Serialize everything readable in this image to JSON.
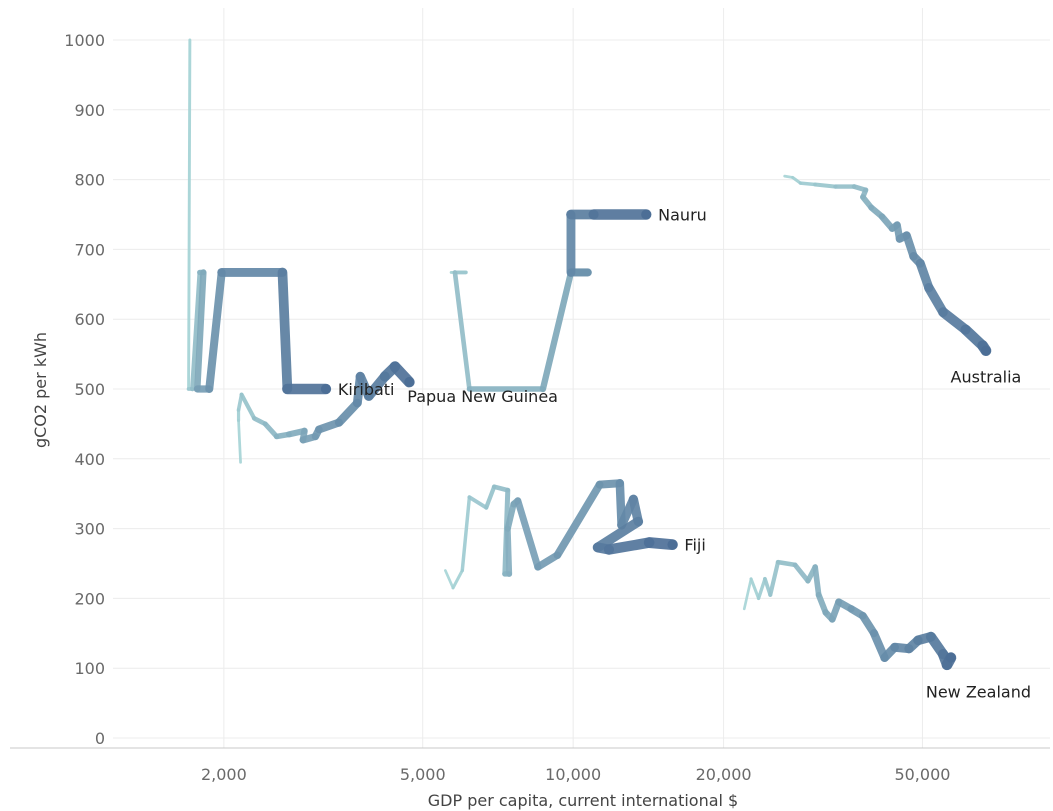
{
  "chart_data": {
    "type": "line",
    "title": "",
    "xlabel": "GDP per capita, current international $",
    "ylabel": "gCO2 per kWh",
    "x_scale": "log",
    "xlim": [
      1200,
      90000
    ],
    "ylim": [
      0,
      1000
    ],
    "x_ticks": [
      {
        "value": 2000,
        "label": "2,000"
      },
      {
        "value": 5000,
        "label": "5,000"
      },
      {
        "value": 10000,
        "label": "10,000"
      },
      {
        "value": 20000,
        "label": "20,000"
      },
      {
        "value": 50000,
        "label": "50,000"
      }
    ],
    "y_ticks": [
      {
        "value": 0,
        "label": "0"
      },
      {
        "value": 100,
        "label": "100"
      },
      {
        "value": 200,
        "label": "200"
      },
      {
        "value": 300,
        "label": "300"
      },
      {
        "value": 400,
        "label": "400"
      },
      {
        "value": 500,
        "label": "500"
      },
      {
        "value": 600,
        "label": "600"
      },
      {
        "value": 700,
        "label": "700"
      },
      {
        "value": 800,
        "label": "800"
      },
      {
        "value": 900,
        "label": "900"
      },
      {
        "value": 1000,
        "label": "1000"
      }
    ],
    "grid": true,
    "legend": "none",
    "color_start": "#a9d7d8",
    "color_end": "#4c6e96",
    "series": [
      {
        "name": "Kiribati",
        "points": [
          [
            1710,
            1000
          ],
          [
            1700,
            500
          ],
          [
            1730,
            500
          ],
          [
            1790,
            667
          ],
          [
            1820,
            667
          ],
          [
            1770,
            500
          ],
          [
            1870,
            500
          ],
          [
            1980,
            667
          ],
          [
            2620,
            667
          ],
          [
            2680,
            500
          ],
          [
            3200,
            500
          ]
        ]
      },
      {
        "name": "Papua New Guinea",
        "points": [
          [
            2160,
            395
          ],
          [
            2140,
            455
          ],
          [
            2140,
            470
          ],
          [
            2170,
            492
          ],
          [
            2300,
            458
          ],
          [
            2420,
            450
          ],
          [
            2550,
            432
          ],
          [
            2700,
            435
          ],
          [
            2900,
            440
          ],
          [
            2880,
            427
          ],
          [
            3050,
            432
          ],
          [
            3100,
            442
          ],
          [
            3400,
            452
          ],
          [
            3700,
            480
          ],
          [
            3750,
            518
          ],
          [
            3900,
            490
          ],
          [
            4200,
            518
          ],
          [
            4400,
            532
          ],
          [
            4700,
            510
          ]
        ]
      },
      {
        "name": "Nauru",
        "points": [
          [
            5700,
            667
          ],
          [
            6100,
            667
          ],
          [
            5800,
            667
          ],
          [
            6200,
            500
          ],
          [
            8700,
            500
          ],
          [
            9900,
            667
          ],
          [
            10700,
            667
          ],
          [
            9900,
            667
          ],
          [
            9900,
            750
          ],
          [
            11000,
            750
          ],
          [
            14000,
            750
          ]
        ]
      },
      {
        "name": "Fiji",
        "points": [
          [
            5550,
            240
          ],
          [
            5750,
            215
          ],
          [
            6000,
            240
          ],
          [
            6200,
            345
          ],
          [
            6700,
            330
          ],
          [
            6950,
            360
          ],
          [
            7400,
            355
          ],
          [
            7300,
            235
          ],
          [
            7450,
            235
          ],
          [
            7400,
            300
          ],
          [
            7600,
            335
          ],
          [
            7750,
            340
          ],
          [
            8500,
            245
          ],
          [
            9300,
            262
          ],
          [
            11300,
            363
          ],
          [
            12400,
            365
          ],
          [
            12500,
            305
          ],
          [
            13200,
            342
          ],
          [
            13500,
            310
          ],
          [
            11200,
            273
          ],
          [
            11800,
            270
          ],
          [
            14200,
            280
          ],
          [
            15800,
            277
          ]
        ]
      },
      {
        "name": "Australia",
        "points": [
          [
            26500,
            805
          ],
          [
            27500,
            803
          ],
          [
            28500,
            795
          ],
          [
            30500,
            793
          ],
          [
            33500,
            790
          ],
          [
            36500,
            790
          ],
          [
            38500,
            785
          ],
          [
            38000,
            775
          ],
          [
            39500,
            760
          ],
          [
            41500,
            747
          ],
          [
            43500,
            730
          ],
          [
            44500,
            735
          ],
          [
            45000,
            715
          ],
          [
            46500,
            720
          ],
          [
            48000,
            690
          ],
          [
            49500,
            680
          ],
          [
            51500,
            645
          ],
          [
            55000,
            610
          ],
          [
            61000,
            585
          ],
          [
            66000,
            562
          ],
          [
            67000,
            555
          ]
        ]
      },
      {
        "name": "New Zealand",
        "points": [
          [
            22000,
            185
          ],
          [
            22700,
            228
          ],
          [
            23500,
            200
          ],
          [
            24200,
            228
          ],
          [
            24800,
            205
          ],
          [
            25700,
            252
          ],
          [
            27800,
            248
          ],
          [
            29500,
            225
          ],
          [
            30500,
            245
          ],
          [
            31000,
            205
          ],
          [
            32000,
            180
          ],
          [
            33000,
            170
          ],
          [
            34000,
            195
          ],
          [
            36000,
            185
          ],
          [
            38000,
            175
          ],
          [
            40000,
            150
          ],
          [
            42000,
            115
          ],
          [
            44000,
            130
          ],
          [
            47000,
            128
          ],
          [
            49000,
            140
          ],
          [
            52000,
            145
          ],
          [
            55000,
            120
          ],
          [
            56000,
            105
          ],
          [
            57000,
            115
          ]
        ]
      }
    ],
    "end_labels": [
      {
        "series": "Kiribati",
        "text": "Kiribati"
      },
      {
        "series": "Papua New Guinea",
        "text": "Papua New Guinea"
      },
      {
        "series": "Nauru",
        "text": "Nauru"
      },
      {
        "series": "Fiji",
        "text": "Fiji"
      },
      {
        "series": "Australia",
        "text": "Australia"
      },
      {
        "series": "New Zealand",
        "text": "New Zealand"
      }
    ]
  }
}
